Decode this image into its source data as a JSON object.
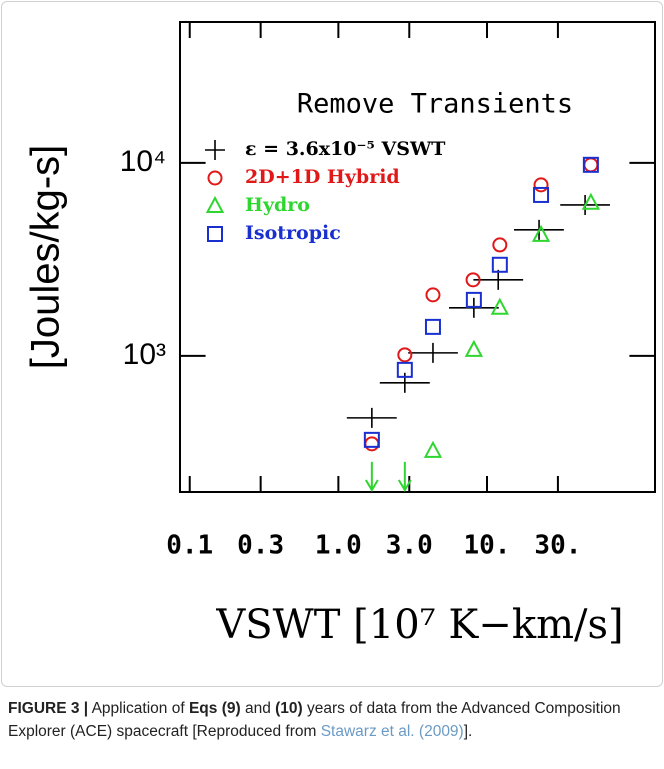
{
  "chart_data": {
    "type": "scatter",
    "annotation": "Remove Transients",
    "ylabel": "[Joules/kg-s]",
    "xlabel": "VSWT [10⁷ K−km/s]",
    "log_x": true,
    "log_y": true,
    "xlim": [
      0.086,
      135
    ],
    "ylim": [
      197,
      53700
    ],
    "xticks": [
      {
        "value": 0.1,
        "label": "0.1"
      },
      {
        "value": 0.3,
        "label": "0.3"
      },
      {
        "value": 1,
        "label": "1.0"
      },
      {
        "value": 3,
        "label": "3.0"
      },
      {
        "value": 10,
        "label": "10."
      },
      {
        "value": 30,
        "label": "30."
      }
    ],
    "yticks": [
      {
        "value": 1000,
        "label": "10³"
      },
      {
        "value": 10000,
        "label": "10⁴"
      }
    ],
    "series": [
      {
        "name": "ε = 3.6x10⁻⁵ VSWT",
        "color": "#000000",
        "marker": "cross",
        "x": [
          1.68,
          2.8,
          4.33,
          8.16,
          11.9,
          22.4,
          45.7
        ],
        "x_low": [
          1.14,
          1.9,
          2.95,
          5.55,
          8.1,
          15.2,
          31.1
        ],
        "x_high": [
          2.47,
          4.12,
          6.37,
          12.0,
          17.5,
          32.9,
          67.2
        ],
        "values": [
          477,
          725,
          1036,
          1774,
          2477,
          4497,
          6050
        ]
      },
      {
        "name": "2D+1D Hybrid",
        "color": "#e01818",
        "marker": "circle",
        "x": [
          1.68,
          2.8,
          4.33,
          8.06,
          12.2,
          23.1,
          50
        ],
        "values": [
          350,
          1012,
          2070,
          2477,
          3758,
          7690,
          9770
        ]
      },
      {
        "name": "Hydro",
        "color": "#2fd62f",
        "marker": "triangle",
        "x": [
          4.33,
          8.16,
          12.2,
          23.1,
          50
        ],
        "values": [
          322,
          1074,
          1774,
          4236,
          6210
        ],
        "upper_limits": {
          "x": [
            1.68,
            2.8
          ],
          "values": [
            282,
            282
          ]
        }
      },
      {
        "name": "Isotropic",
        "color": "#1a2fd0",
        "marker": "square",
        "x": [
          1.68,
          2.8,
          4.33,
          8.16,
          12.2,
          23.1,
          50
        ],
        "values": [
          367,
          846,
          1413,
          1950,
          2964,
          6820,
          9770
        ]
      }
    ]
  },
  "caption": {
    "label": "FIGURE 3 |",
    "parts": [
      " Application of ",
      "Eqs (9)",
      " and ",
      "(10)",
      " years of data from the Advanced Composition Explorer (ACE) spacecraft [Reproduced from ",
      "Stawarz et al. (2009)",
      "]."
    ]
  }
}
